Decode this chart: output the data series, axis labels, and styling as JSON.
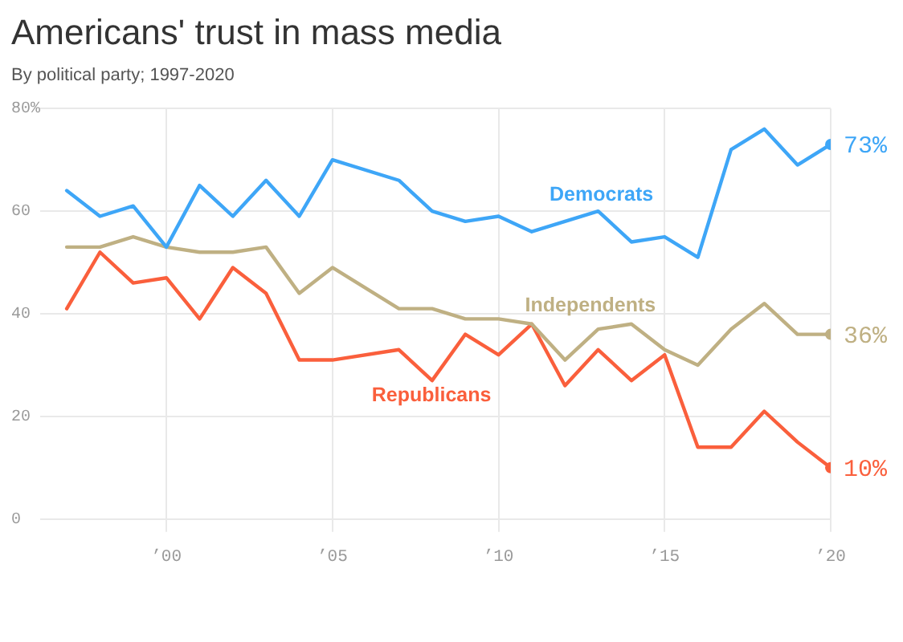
{
  "chart_data": {
    "type": "line",
    "title": "Americans' trust in mass media",
    "subtitle": "By political party; 1997-2020",
    "x": [
      1997,
      1998,
      1999,
      2000,
      2001,
      2002,
      2003,
      2004,
      2005,
      2007,
      2008,
      2009,
      2010,
      2011,
      2012,
      2013,
      2014,
      2015,
      2016,
      2017,
      2018,
      2019,
      2020
    ],
    "series": [
      {
        "name": "Democrats",
        "color": "#3ea6f7",
        "values": [
          64,
          59,
          61,
          53,
          65,
          59,
          66,
          59,
          70,
          66,
          60,
          58,
          59,
          56,
          58,
          60,
          54,
          55,
          51,
          72,
          76,
          69,
          73
        ],
        "value_labels": [
          null,
          null,
          null,
          null,
          null,
          null,
          null,
          null,
          null,
          null,
          null,
          null,
          null,
          null,
          null,
          null,
          null,
          null,
          null,
          null,
          null,
          null,
          "73%"
        ]
      },
      {
        "name": "Independents",
        "color": "#bfb083",
        "values": [
          53,
          53,
          55,
          53,
          52,
          52,
          53,
          44,
          49,
          41,
          41,
          39,
          39,
          38,
          31,
          37,
          38,
          33,
          30,
          37,
          42,
          36,
          36
        ],
        "value_labels": [
          null,
          null,
          null,
          null,
          null,
          null,
          null,
          null,
          null,
          null,
          null,
          null,
          null,
          null,
          null,
          null,
          null,
          null,
          null,
          null,
          null,
          null,
          "36%"
        ]
      },
      {
        "name": "Republicans",
        "color": "#fa5f3c",
        "values": [
          41,
          52,
          46,
          47,
          39,
          49,
          44,
          31,
          31,
          33,
          27,
          36,
          32,
          38,
          26,
          33,
          27,
          32,
          14,
          14,
          21,
          15,
          10
        ],
        "value_labels": [
          null,
          null,
          null,
          null,
          null,
          null,
          null,
          null,
          null,
          null,
          null,
          null,
          null,
          null,
          null,
          null,
          null,
          null,
          null,
          null,
          null,
          null,
          "10%"
        ]
      }
    ],
    "xlim": [
      1996.2,
      2020
    ],
    "xticks": [
      {
        "value": 2000,
        "label": "’00"
      },
      {
        "value": 2005,
        "label": "’05"
      },
      {
        "value": 2010,
        "label": "’10"
      },
      {
        "value": 2015,
        "label": "’15"
      },
      {
        "value": 2020,
        "label": "’20"
      }
    ],
    "ylim": [
      0,
      80
    ],
    "yticks": [
      0,
      20,
      40,
      60,
      {
        "value": 80,
        "label": "80%"
      }
    ],
    "grid": true,
    "marker": "none"
  }
}
